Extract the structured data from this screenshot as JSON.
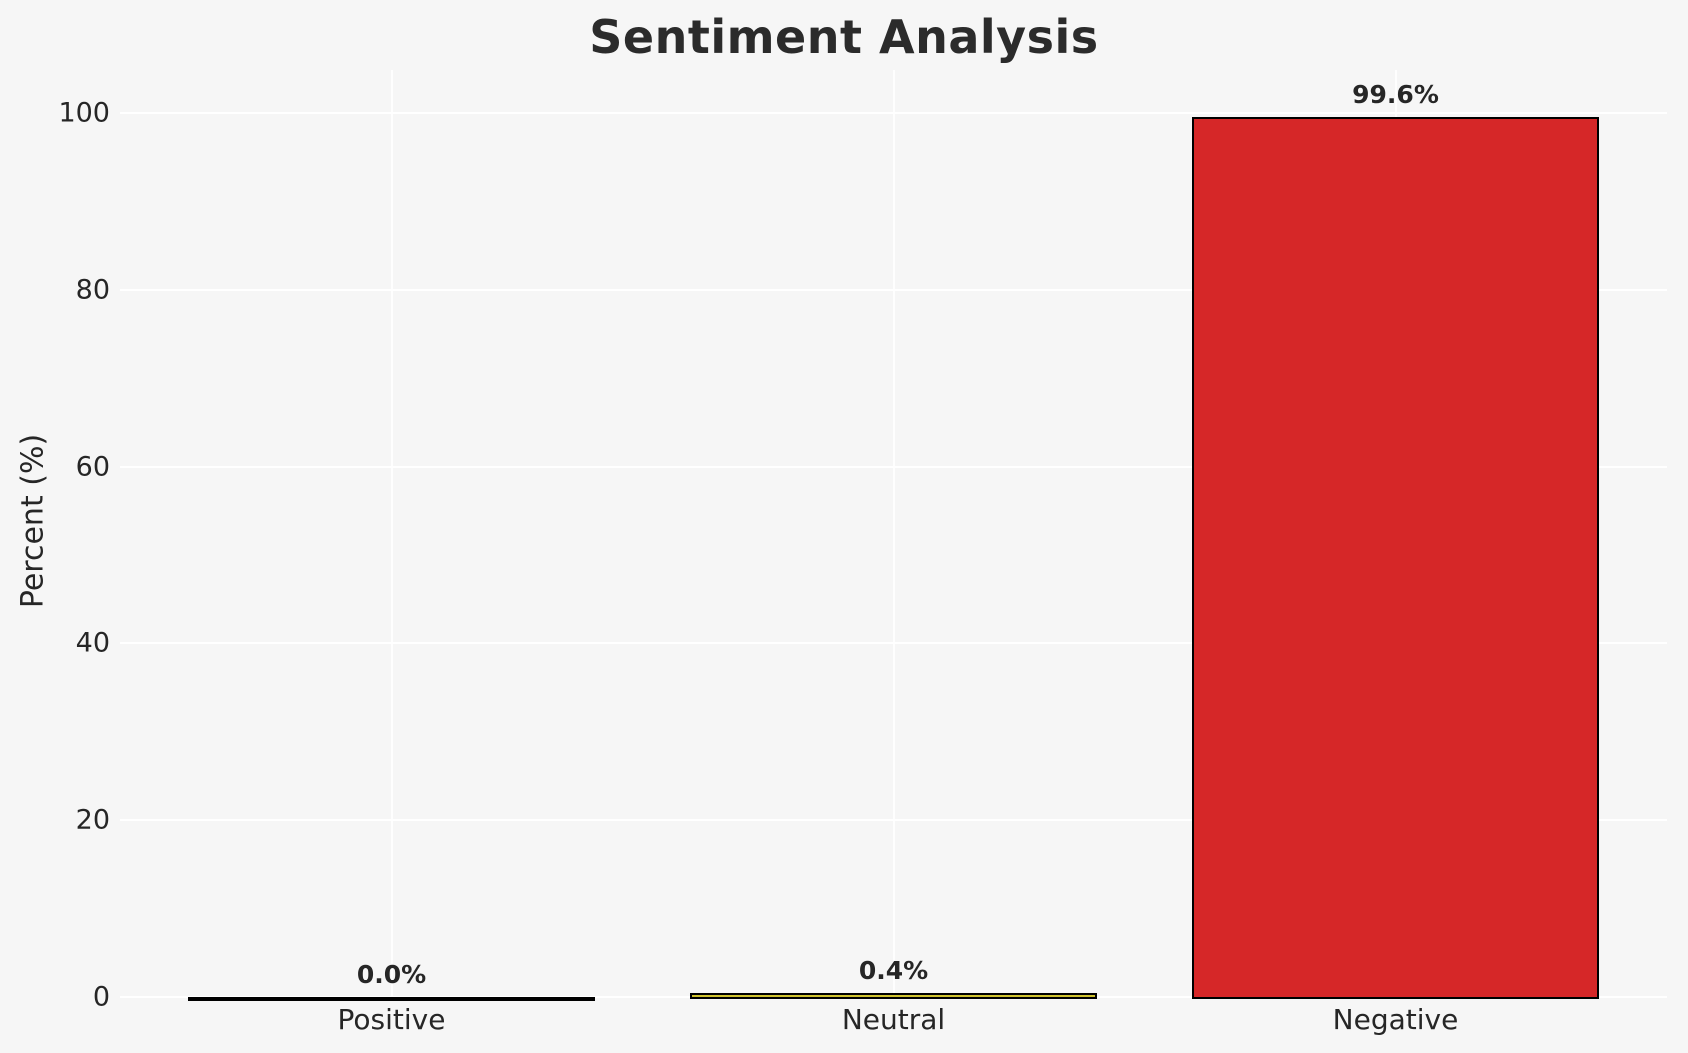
{
  "chart_data": {
    "type": "bar",
    "title": "Sentiment Analysis",
    "xlabel": "",
    "ylabel": "Percent (%)",
    "categories": [
      "Positive",
      "Neutral",
      "Negative"
    ],
    "values": [
      0.0,
      0.4,
      99.6
    ],
    "value_labels": [
      "0.0%",
      "0.4%",
      "99.6%"
    ],
    "ylim": [
      0,
      105
    ],
    "yticks": [
      0,
      20,
      40,
      60,
      80,
      100
    ],
    "grid": true,
    "legend": "none",
    "colors": {
      "negative_bar": "#d62728",
      "neutral_bar": "#cfc22e",
      "positive_bar": null,
      "bar_edge": "#000000",
      "background": "#f6f6f6",
      "gridline": "#ffffff",
      "text": "#262626"
    }
  }
}
